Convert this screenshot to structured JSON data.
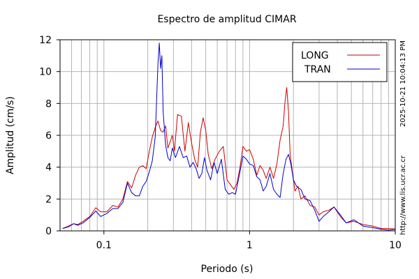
{
  "chart_data": {
    "type": "line",
    "title": "Espectro de amplitud CIMAR",
    "xlabel": "Periodo (s)",
    "ylabel": "Amplitud (cm/s)",
    "xscale": "log",
    "xlim": [
      0.05,
      10
    ],
    "ylim": [
      0,
      12
    ],
    "xticks": [
      0.1,
      1,
      10
    ],
    "xtick_labels": [
      "0.1",
      "1",
      "10"
    ],
    "yticks": [
      0,
      2,
      4,
      6,
      8,
      10,
      12
    ],
    "ytick_labels": [
      "0",
      "2",
      "4",
      "6",
      "8",
      "10",
      "12"
    ],
    "grid": true,
    "legend_position": "top-right",
    "side_text": [
      "http://www.lis.ucr.ac.cr",
      "2025-10-21 10:04:13 PM"
    ],
    "series": [
      {
        "name": "LONG",
        "color": "#cc0000",
        "points": [
          [
            0.052,
            0.15
          ],
          [
            0.057,
            0.3
          ],
          [
            0.062,
            0.45
          ],
          [
            0.066,
            0.4
          ],
          [
            0.072,
            0.6
          ],
          [
            0.08,
            0.9
          ],
          [
            0.088,
            1.45
          ],
          [
            0.095,
            1.2
          ],
          [
            0.105,
            1.2
          ],
          [
            0.115,
            1.6
          ],
          [
            0.125,
            1.5
          ],
          [
            0.135,
            2.0
          ],
          [
            0.145,
            3.1
          ],
          [
            0.155,
            2.7
          ],
          [
            0.165,
            3.5
          ],
          [
            0.175,
            4.0
          ],
          [
            0.185,
            4.1
          ],
          [
            0.195,
            3.9
          ],
          [
            0.205,
            5.0
          ],
          [
            0.215,
            5.9
          ],
          [
            0.225,
            6.5
          ],
          [
            0.235,
            6.9
          ],
          [
            0.245,
            6.3
          ],
          [
            0.255,
            6.2
          ],
          [
            0.265,
            6.6
          ],
          [
            0.275,
            5.2
          ],
          [
            0.285,
            5.6
          ],
          [
            0.295,
            6.0
          ],
          [
            0.305,
            5.0
          ],
          [
            0.32,
            7.3
          ],
          [
            0.34,
            7.2
          ],
          [
            0.36,
            5.0
          ],
          [
            0.38,
            6.8
          ],
          [
            0.4,
            5.5
          ],
          [
            0.42,
            4.5
          ],
          [
            0.44,
            4.0
          ],
          [
            0.46,
            6.2
          ],
          [
            0.48,
            7.1
          ],
          [
            0.5,
            6.3
          ],
          [
            0.52,
            4.8
          ],
          [
            0.55,
            3.9
          ],
          [
            0.58,
            4.5
          ],
          [
            0.62,
            5.0
          ],
          [
            0.66,
            5.3
          ],
          [
            0.7,
            3.2
          ],
          [
            0.74,
            2.9
          ],
          [
            0.78,
            2.6
          ],
          [
            0.82,
            3.0
          ],
          [
            0.86,
            4.0
          ],
          [
            0.9,
            5.3
          ],
          [
            0.95,
            5.0
          ],
          [
            1.0,
            5.1
          ],
          [
            1.06,
            4.5
          ],
          [
            1.12,
            3.5
          ],
          [
            1.18,
            4.1
          ],
          [
            1.24,
            3.8
          ],
          [
            1.3,
            3.3
          ],
          [
            1.38,
            4.0
          ],
          [
            1.46,
            3.3
          ],
          [
            1.54,
            4.2
          ],
          [
            1.62,
            5.7
          ],
          [
            1.7,
            6.6
          ],
          [
            1.75,
            8.1
          ],
          [
            1.8,
            9.0
          ],
          [
            1.85,
            7.5
          ],
          [
            1.9,
            4.8
          ],
          [
            1.98,
            3.5
          ],
          [
            2.05,
            2.5
          ],
          [
            2.15,
            2.8
          ],
          [
            2.25,
            2.0
          ],
          [
            2.4,
            2.2
          ],
          [
            2.6,
            1.6
          ],
          [
            2.8,
            1.5
          ],
          [
            3.0,
            1.0
          ],
          [
            3.2,
            1.2
          ],
          [
            3.5,
            1.3
          ],
          [
            3.8,
            1.5
          ],
          [
            4.2,
            0.9
          ],
          [
            4.6,
            0.5
          ],
          [
            5.2,
            0.6
          ],
          [
            6.0,
            0.4
          ],
          [
            7.0,
            0.3
          ],
          [
            8.0,
            0.15
          ],
          [
            9.0,
            0.15
          ],
          [
            10.0,
            0.12
          ]
        ]
      },
      {
        "name": "TRAN",
        "color": "#0000cc",
        "points": [
          [
            0.052,
            0.15
          ],
          [
            0.057,
            0.25
          ],
          [
            0.062,
            0.45
          ],
          [
            0.066,
            0.35
          ],
          [
            0.072,
            0.5
          ],
          [
            0.08,
            0.85
          ],
          [
            0.088,
            1.25
          ],
          [
            0.095,
            0.9
          ],
          [
            0.105,
            1.1
          ],
          [
            0.115,
            1.4
          ],
          [
            0.125,
            1.4
          ],
          [
            0.135,
            1.8
          ],
          [
            0.145,
            3.0
          ],
          [
            0.155,
            2.4
          ],
          [
            0.165,
            2.2
          ],
          [
            0.175,
            2.2
          ],
          [
            0.185,
            2.8
          ],
          [
            0.195,
            3.1
          ],
          [
            0.205,
            3.7
          ],
          [
            0.215,
            4.4
          ],
          [
            0.225,
            5.9
          ],
          [
            0.235,
            10.5
          ],
          [
            0.24,
            11.8
          ],
          [
            0.245,
            10.2
          ],
          [
            0.25,
            11.0
          ],
          [
            0.255,
            7.5
          ],
          [
            0.265,
            5.4
          ],
          [
            0.275,
            4.6
          ],
          [
            0.285,
            4.4
          ],
          [
            0.295,
            5.2
          ],
          [
            0.31,
            4.6
          ],
          [
            0.33,
            5.3
          ],
          [
            0.35,
            4.6
          ],
          [
            0.37,
            4.7
          ],
          [
            0.39,
            4.0
          ],
          [
            0.41,
            4.3
          ],
          [
            0.43,
            3.9
          ],
          [
            0.45,
            3.3
          ],
          [
            0.47,
            3.6
          ],
          [
            0.49,
            4.6
          ],
          [
            0.51,
            3.8
          ],
          [
            0.54,
            3.2
          ],
          [
            0.57,
            4.3
          ],
          [
            0.6,
            3.6
          ],
          [
            0.64,
            4.5
          ],
          [
            0.68,
            2.6
          ],
          [
            0.72,
            2.3
          ],
          [
            0.76,
            2.4
          ],
          [
            0.8,
            2.3
          ],
          [
            0.85,
            3.5
          ],
          [
            0.9,
            4.7
          ],
          [
            0.95,
            4.5
          ],
          [
            1.0,
            4.2
          ],
          [
            1.06,
            4.1
          ],
          [
            1.12,
            3.4
          ],
          [
            1.18,
            3.2
          ],
          [
            1.24,
            2.5
          ],
          [
            1.3,
            2.8
          ],
          [
            1.38,
            3.6
          ],
          [
            1.46,
            2.6
          ],
          [
            1.54,
            2.3
          ],
          [
            1.62,
            2.1
          ],
          [
            1.7,
            3.6
          ],
          [
            1.78,
            4.5
          ],
          [
            1.85,
            4.8
          ],
          [
            1.92,
            4.2
          ],
          [
            2.0,
            3.2
          ],
          [
            2.1,
            2.8
          ],
          [
            2.25,
            2.6
          ],
          [
            2.4,
            2.0
          ],
          [
            2.6,
            1.9
          ],
          [
            2.8,
            1.3
          ],
          [
            3.0,
            0.6
          ],
          [
            3.2,
            0.9
          ],
          [
            3.5,
            1.2
          ],
          [
            3.8,
            1.5
          ],
          [
            4.2,
            1.0
          ],
          [
            4.6,
            0.5
          ],
          [
            5.2,
            0.7
          ],
          [
            6.0,
            0.3
          ],
          [
            7.0,
            0.2
          ],
          [
            8.0,
            0.1
          ],
          [
            9.0,
            0.05
          ],
          [
            10.0,
            0.1
          ]
        ]
      }
    ]
  }
}
